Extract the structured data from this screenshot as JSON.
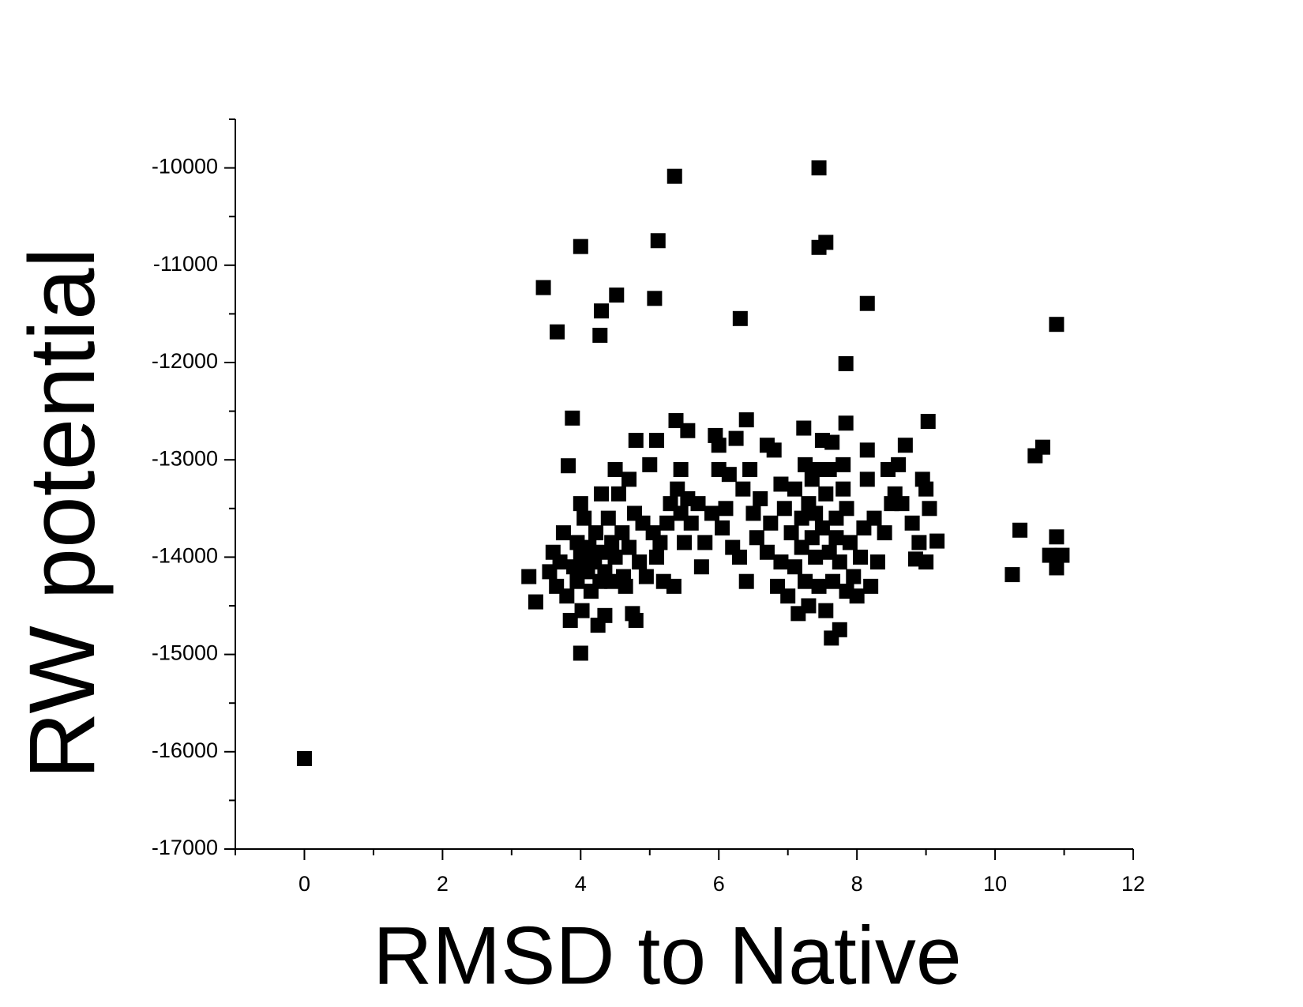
{
  "chart_data": {
    "type": "scatter",
    "xlabel": "RMSD to Native",
    "ylabel": "RW potential",
    "color": "#000000",
    "marker": "square",
    "xlim": [
      -1,
      12
    ],
    "xticks": [
      0,
      2,
      4,
      6,
      8,
      10,
      12
    ],
    "xminorticks": [
      -1,
      1,
      3,
      5,
      7,
      9,
      11
    ],
    "ylim": [
      -17000,
      -9500
    ],
    "yticks": [
      -17000,
      -16000,
      -15000,
      -14000,
      -13000,
      -12000,
      -11000,
      -10000
    ],
    "yminorticks": [
      -16500,
      -15500,
      -14500,
      -13500,
      -12500,
      -11500,
      -10500,
      -9500
    ],
    "x": [
      0,
      7.45,
      5.36,
      5.12,
      4.0,
      7.45,
      7.55,
      3.46,
      4.52,
      5.07,
      4.3,
      3.66,
      4.28,
      6.31,
      8.15,
      10.89,
      7.84,
      3.88,
      9.03,
      7.84,
      5.38,
      6.4,
      7.23,
      7.64,
      10.69,
      10.58,
      10.36,
      10.25,
      10.89,
      10.89,
      10.79,
      10.97,
      4.0,
      7.63,
      7.75,
      3.82,
      9.16,
      9.0,
      3.25,
      3.35,
      3.55,
      3.6,
      3.65,
      3.7,
      3.75,
      3.8,
      3.85,
      3.9,
      3.95,
      3.95,
      4.0,
      4.0,
      4.02,
      4.05,
      4.1,
      4.12,
      4.15,
      4.2,
      4.22,
      4.25,
      4.28,
      4.3,
      4.32,
      4.35,
      4.35,
      4.4,
      4.45,
      4.45,
      4.5,
      4.5,
      4.55,
      4.6,
      4.62,
      4.65,
      4.7,
      4.7,
      4.75,
      4.78,
      4.8,
      4.8,
      4.85,
      4.9,
      4.95,
      5.0,
      5.05,
      5.1,
      5.1,
      5.15,
      5.2,
      5.25,
      5.3,
      5.35,
      5.4,
      5.45,
      5.45,
      5.5,
      5.55,
      5.55,
      5.6,
      5.7,
      5.75,
      5.8,
      5.9,
      5.95,
      6.0,
      6.0,
      6.05,
      6.1,
      6.15,
      6.2,
      6.25,
      6.3,
      6.35,
      6.4,
      6.45,
      6.5,
      6.55,
      6.6,
      6.7,
      6.7,
      6.75,
      6.8,
      6.85,
      6.9,
      6.9,
      6.95,
      7.0,
      7.05,
      7.1,
      7.1,
      7.15,
      7.2,
      7.2,
      7.25,
      7.25,
      7.3,
      7.3,
      7.35,
      7.35,
      7.4,
      7.4,
      7.45,
      7.45,
      7.5,
      7.5,
      7.55,
      7.55,
      7.6,
      7.6,
      7.65,
      7.7,
      7.7,
      7.75,
      7.8,
      7.8,
      7.85,
      7.85,
      7.9,
      7.95,
      8.0,
      8.05,
      8.1,
      8.15,
      8.15,
      8.2,
      8.25,
      8.3,
      8.4,
      8.45,
      8.5,
      8.55,
      8.6,
      8.65,
      8.7,
      8.8,
      8.85,
      8.9,
      8.95,
      9.0,
      9.05
    ],
    "values": [
      -16070,
      -10000,
      -10086,
      -10748,
      -10808,
      -10817,
      -10765,
      -11230,
      -11307,
      -11341,
      -11470,
      -11685,
      -11720,
      -11548,
      -11393,
      -11608,
      -12012,
      -12571,
      -12605,
      -12623,
      -12597,
      -12589,
      -12674,
      -12820,
      -12870,
      -12958,
      -13723,
      -14180,
      -13792,
      -14110,
      -13981,
      -13981,
      -14987,
      -14832,
      -14746,
      -13061,
      -13835,
      -14050,
      -14200,
      -14460,
      -14150,
      -13950,
      -14300,
      -14050,
      -13750,
      -14400,
      -14650,
      -14100,
      -13850,
      -14250,
      -13450,
      -14000,
      -14550,
      -13600,
      -14150,
      -13900,
      -14350,
      -14050,
      -13750,
      -14700,
      -14250,
      -13350,
      -13950,
      -14600,
      -14150,
      -13600,
      -13850,
      -14250,
      -13100,
      -14000,
      -13350,
      -13750,
      -14200,
      -14300,
      -13200,
      -13900,
      -14580,
      -13550,
      -14650,
      -12800,
      -14050,
      -13650,
      -14200,
      -13050,
      -13750,
      -12800,
      -14000,
      -13850,
      -14250,
      -13650,
      -13450,
      -14300,
      -13300,
      -13550,
      -13100,
      -13850,
      -12700,
      -13400,
      -13650,
      -13450,
      -14100,
      -13850,
      -13550,
      -12750,
      -13100,
      -12850,
      -13700,
      -13500,
      -13150,
      -13900,
      -12780,
      -14000,
      -13300,
      -14250,
      -13100,
      -13550,
      -13800,
      -13400,
      -12850,
      -13950,
      -13650,
      -12900,
      -14300,
      -13250,
      -14050,
      -13500,
      -14400,
      -13750,
      -13300,
      -14100,
      -14580,
      -13600,
      -13900,
      -13050,
      -14250,
      -13450,
      -14500,
      -13200,
      -13800,
      -14000,
      -13550,
      -13100,
      -14300,
      -13700,
      -12800,
      -14550,
      -13350,
      -13950,
      -13100,
      -14250,
      -13600,
      -13800,
      -14050,
      -13300,
      -13050,
      -14350,
      -13500,
      -13850,
      -14200,
      -14400,
      -14000,
      -13700,
      -13200,
      -12900,
      -14300,
      -13600,
      -14050,
      -13750,
      -13100,
      -13450,
      -13350,
      -13050,
      -13450,
      -12850,
      -13650,
      -14020,
      -13850,
      -13200,
      -13300,
      -13500
    ]
  }
}
